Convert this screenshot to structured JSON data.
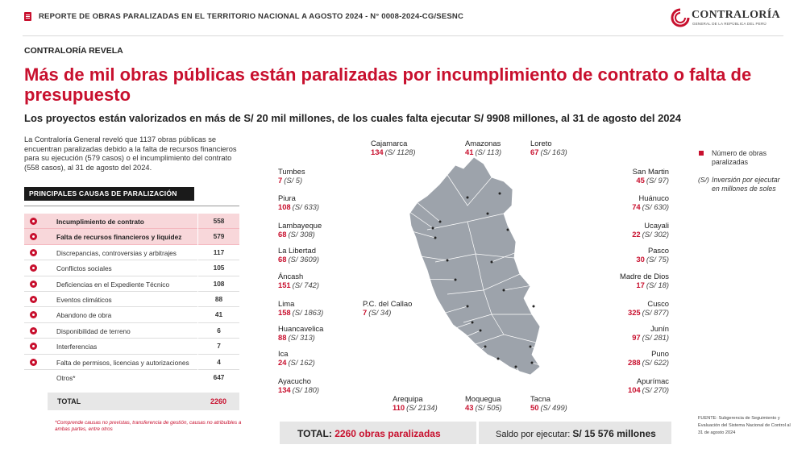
{
  "header": {
    "report_title": "REPORTE DE OBRAS PARALIZADAS EN EL TERRITORIO NACIONAL A AGOSTO 2024 - N° 0008-2024-CG/SESNC",
    "logo_name": "CONTRALORÍA",
    "logo_sub": "GENERAL DE LA REPÚBLICA DEL PERÚ"
  },
  "kicker": "CONTRALORÍA REVELA",
  "headline": "Más de mil obras públicas están paralizadas por incumplimiento de contrato o falta de presupuesto",
  "subhead": "Los proyectos están valorizados en más de S/ 20 mil millones, de los cuales falta ejecutar S/ 9908 millones, al 31 de agosto del 2024",
  "intro": "La Contraloría General reveló que 1137 obras públicas se encuentran paralizadas debido a la falta de recursos financieros para su ejecución (579 casos) o el incumplimiento del contrato (558 casos), al 31 de agosto del 2024.",
  "causes": {
    "title": "PRINCIPALES CAUSAS DE PARALIZACIÓN",
    "items": [
      {
        "label": "Incumplimiento de contrato",
        "value": "558",
        "icon": "contract-icon"
      },
      {
        "label": "Falta de recursos financieros y liquidez",
        "value": "579",
        "icon": "money-icon"
      },
      {
        "label": "Discrepancias, controversias y arbitrajes",
        "value": "117",
        "icon": "gavel-icon"
      },
      {
        "label": "Conflictos sociales",
        "value": "105",
        "icon": "people-icon"
      },
      {
        "label": "Deficiencias en el Expediente Técnico",
        "value": "108",
        "icon": "document-icon"
      },
      {
        "label": "Eventos climáticos",
        "value": "88",
        "icon": "weather-icon"
      },
      {
        "label": "Abandono de obra",
        "value": "41",
        "icon": "abandon-icon"
      },
      {
        "label": "Disponibilidad de terreno",
        "value": "6",
        "icon": "land-icon"
      },
      {
        "label": "Interferencias",
        "value": "7",
        "icon": "interference-icon"
      },
      {
        "label": "Falta de permisos, licencias y autorizaciones",
        "value": "4",
        "icon": "permit-icon"
      },
      {
        "label": "Otros*",
        "value": "647",
        "icon": ""
      }
    ],
    "total_label": "TOTAL",
    "total_value": "2260",
    "footnote": "*Comprende causas no previstas, transferencia de gestión, causas no atribuibles a ambas partes, entre otros"
  },
  "regions": [
    {
      "name": "Cajamarca",
      "count": "134",
      "amount": "(S/ 1128)"
    },
    {
      "name": "Amazonas",
      "count": "41",
      "amount": "(S/ 113)"
    },
    {
      "name": "Loreto",
      "count": "67",
      "amount": "(S/ 163)"
    },
    {
      "name": "Tumbes",
      "count": "7",
      "amount": "(S/ 5)"
    },
    {
      "name": "Piura",
      "count": "108",
      "amount": "(S/ 633)"
    },
    {
      "name": "Lambayeque",
      "count": "68",
      "amount": "(S/ 308)"
    },
    {
      "name": "La Libertad",
      "count": "68",
      "amount": "(S/ 3609)"
    },
    {
      "name": "Áncash",
      "count": "151",
      "amount": "(S/ 742)"
    },
    {
      "name": "Lima",
      "count": "158",
      "amount": "(S/ 1863)"
    },
    {
      "name": "P.C. del Callao",
      "count": "7",
      "amount": "(S/ 34)"
    },
    {
      "name": "Huancavelica",
      "count": "88",
      "amount": "(S/ 313)"
    },
    {
      "name": "Ica",
      "count": "24",
      "amount": "(S/ 162)"
    },
    {
      "name": "Ayacucho",
      "count": "134",
      "amount": "(S/ 180)"
    },
    {
      "name": "Arequipa",
      "count": "110",
      "amount": "(S/ 2134)"
    },
    {
      "name": "Moquegua",
      "count": "43",
      "amount": "(S/ 505)"
    },
    {
      "name": "Tacna",
      "count": "50",
      "amount": "(S/ 499)"
    },
    {
      "name": "San Martin",
      "count": "45",
      "amount": "(S/ 97)"
    },
    {
      "name": "Huánuco",
      "count": "74",
      "amount": "(S/ 630)"
    },
    {
      "name": "Ucayali",
      "count": "22",
      "amount": "(S/ 302)"
    },
    {
      "name": "Pasco",
      "count": "30",
      "amount": "(S/ 75)"
    },
    {
      "name": "Madre de Dios",
      "count": "17",
      "amount": "(S/ 18)"
    },
    {
      "name": "Cusco",
      "count": "325",
      "amount": "(S/ 877)"
    },
    {
      "name": "Junín",
      "count": "97",
      "amount": "(S/ 281)"
    },
    {
      "name": "Puno",
      "count": "288",
      "amount": "(S/ 622)"
    },
    {
      "name": "Apurímac",
      "count": "104",
      "amount": "(S/ 270)"
    }
  ],
  "legend": {
    "item1": "Número de obras paralizadas",
    "symbol2": "(S/)",
    "item2": "Inversión por ejecutar en millones de soles"
  },
  "bottom": {
    "total_label": "TOTAL:",
    "total_value": "2260 obras paralizadas",
    "balance_label": "Saldo por ejecutar:",
    "balance_value": "S/ 15 576 millones"
  },
  "source": "FUENTE: Subgerencia de Seguimiento y Evaluación del Sistema Nacional de Control al 31 de agosto 2024",
  "colors": {
    "accent": "#c8102e",
    "map": "#9da3ab"
  }
}
